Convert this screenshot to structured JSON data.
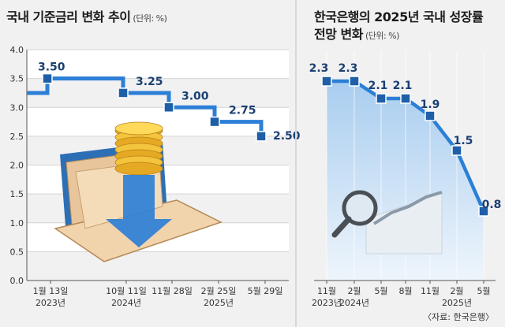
{
  "chart_data": [
    {
      "type": "line",
      "title": "국내 기준금리 변화 추이",
      "unit": "(단위: %)",
      "y_ticks": [
        "4.0",
        "3.5",
        "3.0",
        "2.5",
        "2.0",
        "1.5",
        "1.0",
        "0.5",
        "0.0"
      ],
      "ylim": [
        0,
        4
      ],
      "x_labels": [
        {
          "date": "1월 13일",
          "year": "2023년"
        },
        {
          "date": "10월 11일",
          "year": "2024년"
        },
        {
          "date": "11월 28일",
          "year": ""
        },
        {
          "date": "2월 25일",
          "year": "2025년"
        },
        {
          "date": "5월 29일",
          "year": ""
        }
      ],
      "values": [
        3.5,
        3.25,
        3.0,
        2.75,
        2.5
      ],
      "value_labels": [
        "3.50",
        "3.25",
        "3.00",
        "2.75",
        "2.50"
      ],
      "step": true,
      "grid": true,
      "colors": {
        "line": "#2c7fd6",
        "marker": "#1e5fa8",
        "label": "#1b3f73"
      }
    },
    {
      "type": "line",
      "title": [
        "한국은행의 2025년 국내 성장률",
        "전망 변화"
      ],
      "unit": "(단위: %)",
      "x_labels": [
        {
          "date": "11월",
          "year": "2023년"
        },
        {
          "date": "2월",
          "year": "2024년"
        },
        {
          "date": "5월",
          "year": ""
        },
        {
          "date": "8월",
          "year": ""
        },
        {
          "date": "11월",
          "year": ""
        },
        {
          "date": "2월",
          "year": "2025년"
        },
        {
          "date": "5월",
          "year": ""
        }
      ],
      "values": [
        2.3,
        2.3,
        2.1,
        2.1,
        1.9,
        1.5,
        0.8
      ],
      "value_labels": [
        "2.3",
        "2.3",
        "2.1",
        "2.1",
        "1.9",
        "1.5",
        "0.8"
      ],
      "ylim": [
        0,
        2.6
      ],
      "area": true,
      "colors": {
        "line": "#2c7fd6",
        "marker": "#1e5fa8",
        "fill": "#cfe3f5"
      },
      "source": "〈자료: 한국은행〉"
    }
  ]
}
